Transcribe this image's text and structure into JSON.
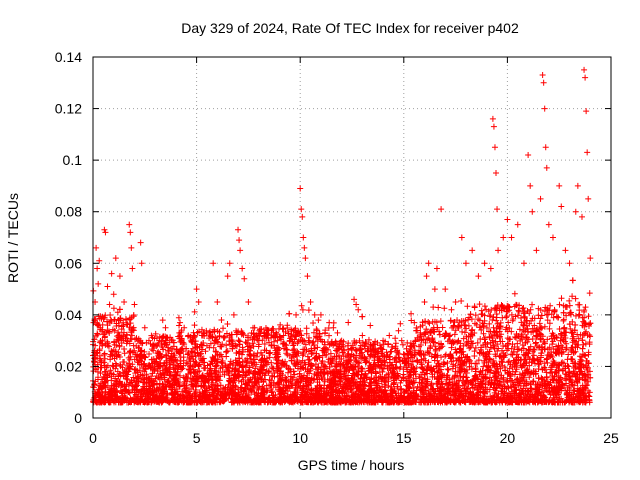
{
  "chart_data": {
    "type": "scatter",
    "title": "Day 329 of 2024, Rate Of TEC Index for receiver p402",
    "xlabel": "GPS time / hours",
    "ylabel": "ROTI / TECUs",
    "xlim": [
      0,
      25
    ],
    "ylim": [
      0,
      0.14
    ],
    "xticks": [
      0,
      5,
      10,
      15,
      20,
      25
    ],
    "xtick_labels": [
      "0",
      "5",
      "10",
      "15",
      "20",
      "25"
    ],
    "yticks": [
      0,
      0.02,
      0.04,
      0.06,
      0.08,
      0.1,
      0.12,
      0.14
    ],
    "ytick_labels": [
      "0",
      "0.02",
      "0.04",
      "0.06",
      "0.08",
      "0.1",
      "0.12",
      "0.14"
    ],
    "grid": true,
    "marker": "+",
    "series_color": "#ff0000",
    "series": [
      {
        "name": "ROTI",
        "points": [
          [
            0.0,
            0.012
          ],
          [
            0.05,
            0.022
          ],
          [
            0.1,
            0.045
          ],
          [
            0.15,
            0.066
          ],
          [
            0.2,
            0.058
          ],
          [
            0.25,
            0.052
          ],
          [
            0.3,
            0.061
          ],
          [
            0.35,
            0.035
          ],
          [
            0.45,
            0.028
          ],
          [
            0.55,
            0.073
          ],
          [
            0.6,
            0.072
          ],
          [
            0.7,
            0.051
          ],
          [
            0.8,
            0.044
          ],
          [
            0.9,
            0.056
          ],
          [
            1.0,
            0.048
          ],
          [
            1.1,
            0.062
          ],
          [
            1.2,
            0.041
          ],
          [
            1.3,
            0.055
          ],
          [
            1.5,
            0.045
          ],
          [
            1.6,
            0.038
          ],
          [
            1.75,
            0.075
          ],
          [
            1.8,
            0.072
          ],
          [
            1.85,
            0.066
          ],
          [
            1.9,
            0.058
          ],
          [
            2.0,
            0.044
          ],
          [
            2.1,
            0.031
          ],
          [
            2.3,
            0.068
          ],
          [
            2.35,
            0.06
          ],
          [
            2.5,
            0.035
          ],
          [
            2.7,
            0.03
          ],
          [
            3.0,
            0.028
          ],
          [
            3.2,
            0.03
          ],
          [
            3.5,
            0.035
          ],
          [
            3.8,
            0.025
          ],
          [
            4.2,
            0.037
          ],
          [
            4.4,
            0.035
          ],
          [
            4.6,
            0.032
          ],
          [
            4.8,
            0.03
          ],
          [
            4.9,
            0.036
          ],
          [
            5.0,
            0.05
          ],
          [
            5.1,
            0.045
          ],
          [
            5.3,
            0.032
          ],
          [
            5.5,
            0.028
          ],
          [
            5.8,
            0.06
          ],
          [
            6.0,
            0.045
          ],
          [
            6.2,
            0.038
          ],
          [
            6.5,
            0.055
          ],
          [
            6.6,
            0.06
          ],
          [
            6.8,
            0.04
          ],
          [
            7.0,
            0.073
          ],
          [
            7.05,
            0.069
          ],
          [
            7.1,
            0.065
          ],
          [
            7.2,
            0.058
          ],
          [
            7.3,
            0.054
          ],
          [
            7.5,
            0.045
          ],
          [
            7.8,
            0.035
          ],
          [
            8.0,
            0.03
          ],
          [
            8.3,
            0.032
          ],
          [
            8.6,
            0.028
          ],
          [
            8.9,
            0.03
          ],
          [
            9.2,
            0.032
          ],
          [
            9.5,
            0.03
          ],
          [
            9.8,
            0.04
          ],
          [
            10.0,
            0.089
          ],
          [
            10.05,
            0.081
          ],
          [
            10.1,
            0.078
          ],
          [
            10.15,
            0.07
          ],
          [
            10.2,
            0.066
          ],
          [
            10.25,
            0.062
          ],
          [
            10.35,
            0.055
          ],
          [
            10.5,
            0.045
          ],
          [
            10.7,
            0.04
          ],
          [
            11.0,
            0.04
          ],
          [
            11.2,
            0.033
          ],
          [
            11.4,
            0.037
          ],
          [
            11.6,
            0.035
          ],
          [
            11.8,
            0.033
          ],
          [
            12.0,
            0.03
          ],
          [
            12.3,
            0.028
          ],
          [
            12.6,
            0.046
          ],
          [
            12.7,
            0.044
          ],
          [
            12.8,
            0.042
          ],
          [
            13.0,
            0.032
          ],
          [
            13.5,
            0.028
          ],
          [
            14.0,
            0.03
          ],
          [
            14.3,
            0.032
          ],
          [
            14.6,
            0.027
          ],
          [
            14.9,
            0.03
          ],
          [
            15.2,
            0.025
          ],
          [
            15.5,
            0.028
          ],
          [
            15.8,
            0.033
          ],
          [
            16.0,
            0.045
          ],
          [
            16.1,
            0.055
          ],
          [
            16.2,
            0.06
          ],
          [
            16.5,
            0.05
          ],
          [
            16.6,
            0.058
          ],
          [
            16.8,
            0.081
          ],
          [
            17.0,
            0.05
          ],
          [
            17.3,
            0.042
          ],
          [
            17.5,
            0.045
          ],
          [
            17.8,
            0.07
          ],
          [
            18.0,
            0.06
          ],
          [
            18.3,
            0.065
          ],
          [
            18.6,
            0.055
          ],
          [
            18.9,
            0.06
          ],
          [
            19.2,
            0.058
          ],
          [
            19.3,
            0.116
          ],
          [
            19.35,
            0.113
          ],
          [
            19.4,
            0.105
          ],
          [
            19.45,
            0.095
          ],
          [
            19.5,
            0.081
          ],
          [
            19.55,
            0.065
          ],
          [
            19.8,
            0.07
          ],
          [
            20.0,
            0.077
          ],
          [
            20.2,
            0.07
          ],
          [
            20.5,
            0.075
          ],
          [
            20.8,
            0.06
          ],
          [
            21.0,
            0.102
          ],
          [
            21.1,
            0.09
          ],
          [
            21.2,
            0.08
          ],
          [
            21.4,
            0.065
          ],
          [
            21.6,
            0.085
          ],
          [
            21.7,
            0.133
          ],
          [
            21.75,
            0.13
          ],
          [
            21.8,
            0.12
          ],
          [
            21.85,
            0.105
          ],
          [
            21.9,
            0.097
          ],
          [
            22.0,
            0.075
          ],
          [
            22.2,
            0.07
          ],
          [
            22.5,
            0.09
          ],
          [
            22.6,
            0.082
          ],
          [
            22.8,
            0.065
          ],
          [
            23.0,
            0.06
          ],
          [
            23.3,
            0.08
          ],
          [
            23.4,
            0.09
          ],
          [
            23.6,
            0.078
          ],
          [
            23.7,
            0.135
          ],
          [
            23.75,
            0.132
          ],
          [
            23.8,
            0.119
          ],
          [
            23.85,
            0.103
          ],
          [
            23.9,
            0.085
          ],
          [
            24.0,
            0.062
          ]
        ]
      }
    ]
  }
}
